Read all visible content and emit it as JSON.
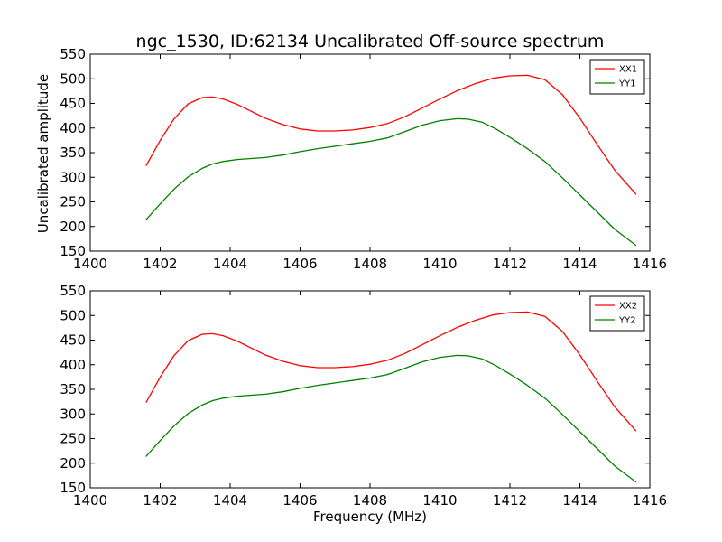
{
  "figure": {
    "title": "ngc_1530, ID:62134 Uncalibrated Off-source spectrum",
    "xlabel": "Frequency (MHz)",
    "ylabel": "Uncalibrated amplitude"
  },
  "chart_data": [
    {
      "type": "line",
      "title": "ngc_1530, ID:62134 Uncalibrated Off-source spectrum",
      "xlabel": "",
      "ylabel": "Uncalibrated amplitude",
      "xlim": [
        1400,
        1416
      ],
      "ylim": [
        150,
        550
      ],
      "xticks": [
        "1400",
        "1402",
        "1404",
        "1406",
        "1408",
        "1410",
        "1412",
        "1414",
        "1416"
      ],
      "yticks": [
        "150",
        "200",
        "250",
        "300",
        "350",
        "400",
        "450",
        "500",
        "550"
      ],
      "legend_position": "top-right",
      "grid": false,
      "series": [
        {
          "name": "XX1",
          "color": "#ff0000",
          "x": [
            1401.6,
            1402.0,
            1402.4,
            1402.8,
            1403.2,
            1403.5,
            1403.8,
            1404.2,
            1404.6,
            1405.0,
            1405.5,
            1406.0,
            1406.5,
            1407.0,
            1407.5,
            1408.0,
            1408.5,
            1409.0,
            1409.5,
            1410.0,
            1410.5,
            1411.0,
            1411.5,
            1412.0,
            1412.5,
            1413.0,
            1413.5,
            1414.0,
            1414.5,
            1415.0,
            1415.6
          ],
          "y": [
            324,
            375,
            419,
            449,
            462,
            463,
            459,
            448,
            434,
            420,
            407,
            398,
            394,
            394,
            396,
            401,
            409,
            423,
            441,
            459,
            476,
            490,
            501,
            506,
            507,
            498,
            468,
            420,
            366,
            314,
            266
          ]
        },
        {
          "name": "YY1",
          "color": "#008000",
          "x": [
            1401.6,
            1402.0,
            1402.4,
            1402.8,
            1403.2,
            1403.5,
            1403.8,
            1404.2,
            1404.6,
            1405.0,
            1405.5,
            1406.0,
            1406.5,
            1407.0,
            1407.5,
            1408.0,
            1408.5,
            1409.0,
            1409.5,
            1410.0,
            1410.5,
            1410.8,
            1411.2,
            1411.6,
            1412.0,
            1412.5,
            1413.0,
            1413.5,
            1414.0,
            1414.5,
            1415.0,
            1415.6
          ],
          "y": [
            214,
            246,
            276,
            301,
            318,
            327,
            332,
            336,
            338,
            340,
            345,
            352,
            358,
            363,
            368,
            373,
            380,
            393,
            406,
            415,
            419,
            418,
            412,
            398,
            381,
            358,
            332,
            299,
            264,
            229,
            194,
            162
          ]
        }
      ]
    },
    {
      "type": "line",
      "title": "",
      "xlabel": "Frequency (MHz)",
      "ylabel": "",
      "xlim": [
        1400,
        1416
      ],
      "ylim": [
        150,
        550
      ],
      "xticks": [
        "1400",
        "1402",
        "1404",
        "1406",
        "1408",
        "1410",
        "1412",
        "1414",
        "1416"
      ],
      "yticks": [
        "150",
        "200",
        "250",
        "300",
        "350",
        "400",
        "450",
        "500",
        "550"
      ],
      "legend_position": "top-right",
      "grid": false,
      "series": [
        {
          "name": "XX2",
          "color": "#ff0000",
          "x": [
            1401.6,
            1402.0,
            1402.4,
            1402.8,
            1403.2,
            1403.5,
            1403.8,
            1404.2,
            1404.6,
            1405.0,
            1405.5,
            1406.0,
            1406.5,
            1407.0,
            1407.5,
            1408.0,
            1408.5,
            1409.0,
            1409.5,
            1410.0,
            1410.5,
            1411.0,
            1411.5,
            1412.0,
            1412.5,
            1413.0,
            1413.5,
            1414.0,
            1414.5,
            1415.0,
            1415.6
          ],
          "y": [
            324,
            375,
            419,
            449,
            462,
            463,
            459,
            448,
            434,
            420,
            407,
            398,
            394,
            394,
            396,
            401,
            409,
            423,
            441,
            459,
            476,
            490,
            501,
            506,
            507,
            498,
            468,
            420,
            366,
            314,
            266
          ]
        },
        {
          "name": "YY2",
          "color": "#008000",
          "x": [
            1401.6,
            1402.0,
            1402.4,
            1402.8,
            1403.2,
            1403.5,
            1403.8,
            1404.2,
            1404.6,
            1405.0,
            1405.5,
            1406.0,
            1406.5,
            1407.0,
            1407.5,
            1408.0,
            1408.5,
            1409.0,
            1409.5,
            1410.0,
            1410.5,
            1410.8,
            1411.2,
            1411.6,
            1412.0,
            1412.5,
            1413.0,
            1413.5,
            1414.0,
            1414.5,
            1415.0,
            1415.6
          ],
          "y": [
            214,
            246,
            276,
            301,
            318,
            327,
            332,
            336,
            338,
            340,
            345,
            352,
            358,
            363,
            368,
            373,
            380,
            393,
            406,
            415,
            419,
            418,
            412,
            398,
            381,
            358,
            332,
            299,
            264,
            229,
            194,
            162
          ]
        }
      ]
    }
  ]
}
